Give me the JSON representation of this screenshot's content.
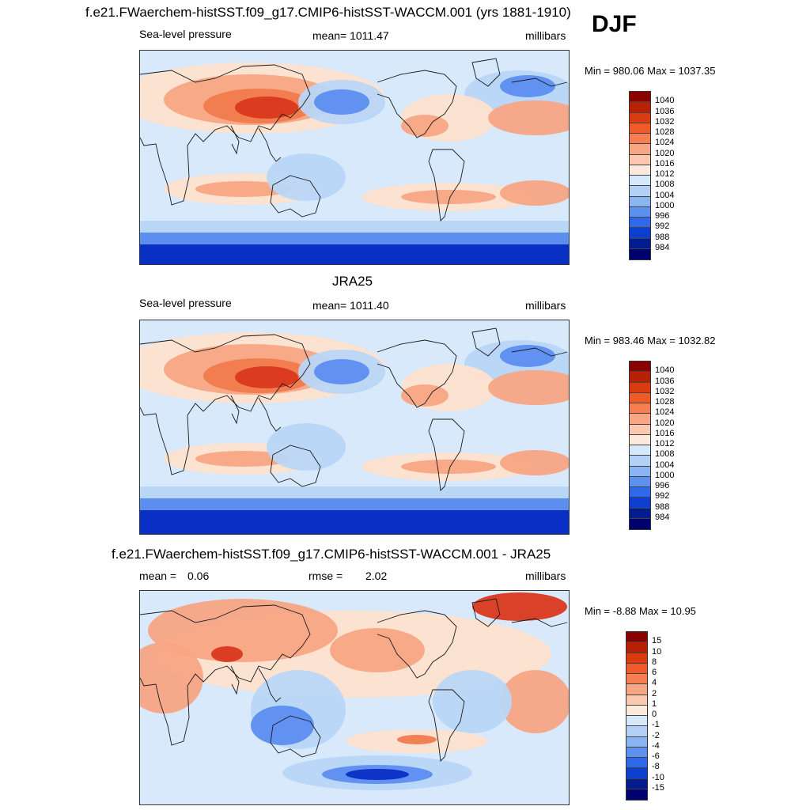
{
  "main_title": "f.e21.FWaerchem-histSST.f09_g17.CMIP6-histSST-WACCM.001 (yrs 1881-1910)",
  "season": "DJF",
  "panels": [
    {
      "id": "model",
      "variable": "Sea-level pressure",
      "stat": "mean= 1011.47",
      "units": "millibars",
      "minmax": "Min = 980.06 Max = 1037.35",
      "colorbar": {
        "labels": [
          "1040",
          "1036",
          "1032",
          "1028",
          "1024",
          "1020",
          "1016",
          "1012",
          "1008",
          "1004",
          "1000",
          "996",
          "992",
          "988",
          "984"
        ],
        "colors": [
          "#8b0000",
          "#b82106",
          "#dc3a10",
          "#f05a28",
          "#f57f52",
          "#f8a584",
          "#fbc7ae",
          "#fde9dc",
          "#d6e8fc",
          "#b3d1f6",
          "#8ab4f2",
          "#5c91ee",
          "#2f68e8",
          "#0c3fd0",
          "#001c8e",
          "#00006e"
        ]
      }
    },
    {
      "id": "obs",
      "title": "JRA25",
      "variable": "Sea-level pressure",
      "stat": "mean= 1011.40",
      "units": "millibars",
      "minmax": "Min = 983.46 Max = 1032.82",
      "colorbar": {
        "labels": [
          "1040",
          "1036",
          "1032",
          "1028",
          "1024",
          "1020",
          "1016",
          "1012",
          "1008",
          "1004",
          "1000",
          "996",
          "992",
          "988",
          "984"
        ],
        "colors": [
          "#8b0000",
          "#b82106",
          "#dc3a10",
          "#f05a28",
          "#f57f52",
          "#f8a584",
          "#fbc7ae",
          "#fde9dc",
          "#d6e8fc",
          "#b3d1f6",
          "#8ab4f2",
          "#5c91ee",
          "#2f68e8",
          "#0c3fd0",
          "#001c8e",
          "#00006e"
        ]
      }
    },
    {
      "id": "diff",
      "title": "f.e21.FWaerchem-histSST.f09_g17.CMIP6-histSST-WACCM.001 - JRA25",
      "stat_left_label": "mean =",
      "stat_left_value": "0.06",
      "stat_mid_label": "rmse =",
      "stat_mid_value": "2.02",
      "units": "millibars",
      "minmax": "Min =  -8.88 Max =  10.95",
      "colorbar": {
        "labels": [
          "15",
          "10",
          "8",
          "6",
          "4",
          "2",
          "1",
          "0",
          "-1",
          "-2",
          "-4",
          "-6",
          "-8",
          "-10",
          "-15"
        ],
        "colors": [
          "#8b0000",
          "#b82106",
          "#dc3a10",
          "#f05a28",
          "#f57f52",
          "#f8a584",
          "#fbc7ae",
          "#fde9dc",
          "#d6e8fc",
          "#b3d1f6",
          "#8ab4f2",
          "#5c91ee",
          "#2f68e8",
          "#0c3fd0",
          "#001c8e",
          "#00006e"
        ]
      }
    }
  ],
  "palette": {
    "deep_blue": "#0a2fc4",
    "mid_blue": "#5c8ef0",
    "light_blue": "#b9d6f7",
    "pale_blue": "#d7e9fb",
    "pale_orange": "#fde2cf",
    "light_orange": "#f8a584",
    "orange": "#f07a4e",
    "red": "#d9381c",
    "coast": "#1a1a1a"
  }
}
